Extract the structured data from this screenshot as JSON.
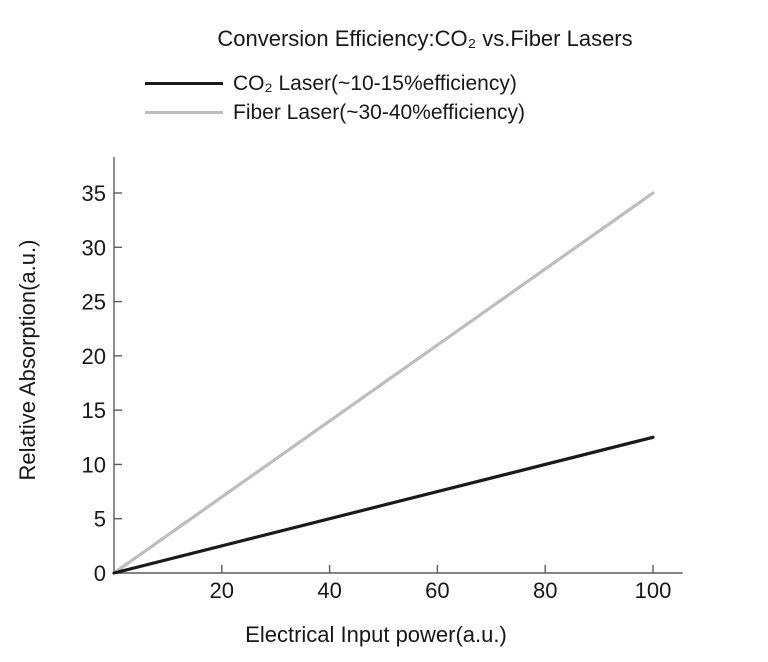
{
  "chart_data": {
    "type": "line",
    "title": "Conversion Efficiency:CO₂ vs.Fiber Lasers",
    "xlabel": "Electrical Input power(a.u.)",
    "ylabel": "Relative Absorption(a.u.)",
    "x": [
      0,
      100
    ],
    "series": [
      {
        "name": "CO₂ Laser(~10-15%efficiency)",
        "values": [
          0,
          12.5
        ],
        "color": "#1a1a1a"
      },
      {
        "name": "Fiber Laser(~30-40%efficiency)",
        "values": [
          0,
          35
        ],
        "color": "#bdbdbd"
      }
    ],
    "xticks": [
      20,
      40,
      60,
      80,
      100
    ],
    "yticks": [
      0,
      5,
      10,
      15,
      20,
      25,
      30,
      35
    ],
    "xlim": [
      0,
      105.5
    ],
    "ylim": [
      0,
      38.3
    ],
    "grid": false,
    "legend_position": "top-left",
    "axis_color": "#5c5c5c",
    "text_color": "#171717",
    "background_color": "#ffffff"
  }
}
